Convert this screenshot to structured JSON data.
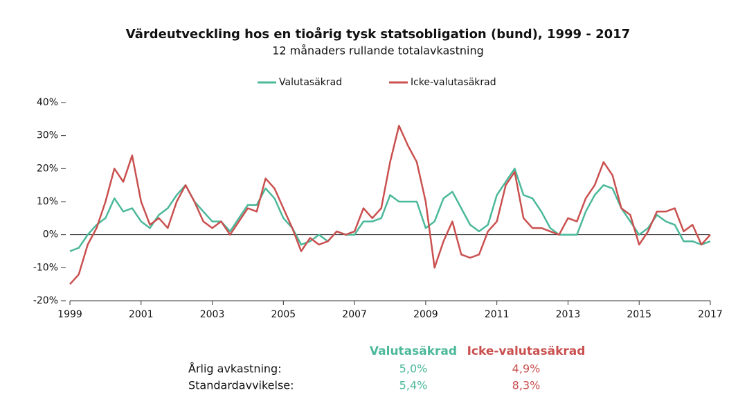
{
  "chart_data": {
    "type": "line",
    "title": "Värdeutveckling hos en tioårig tysk statsobligation (bund), 1999 - 2017",
    "subtitle": "12 månaders rullande totalavkastning",
    "legend": "top",
    "x": [
      1999,
      1999.25,
      1999.5,
      1999.75,
      2000,
      2000.25,
      2000.5,
      2000.75,
      2001,
      2001.25,
      2001.5,
      2001.75,
      2002,
      2002.25,
      2002.5,
      2002.75,
      2003,
      2003.25,
      2003.5,
      2003.75,
      2004,
      2004.25,
      2004.5,
      2004.75,
      2005,
      2005.25,
      2005.5,
      2005.75,
      2006,
      2006.25,
      2006.5,
      2006.75,
      2007,
      2007.25,
      2007.5,
      2007.75,
      2008,
      2008.25,
      2008.5,
      2008.75,
      2009,
      2009.25,
      2009.5,
      2009.75,
      2010,
      2010.25,
      2010.5,
      2010.75,
      2011,
      2011.25,
      2011.5,
      2011.75,
      2012,
      2012.25,
      2012.5,
      2012.75,
      2013,
      2013.25,
      2013.5,
      2013.75,
      2014,
      2014.25,
      2014.5,
      2014.75,
      2015,
      2015.25,
      2015.5,
      2015.75,
      2016,
      2016.25,
      2016.5,
      2016.75,
      2017
    ],
    "series": [
      {
        "name": "Valutasäkrad",
        "color": "#4bb89a",
        "values": [
          -5,
          -4,
          0,
          3,
          5,
          11,
          7,
          8,
          4,
          2,
          6,
          8,
          12,
          15,
          10,
          7,
          4,
          4,
          1,
          5,
          9,
          9,
          14,
          11,
          5,
          2,
          -3,
          -2,
          0,
          -2,
          1,
          0,
          0,
          4,
          4,
          5,
          12,
          10,
          10,
          10,
          2,
          4,
          11,
          13,
          8,
          3,
          1,
          3,
          12,
          16,
          20,
          12,
          11,
          7,
          2,
          0,
          0,
          0,
          7,
          12,
          15,
          14,
          8,
          4,
          0,
          2,
          6,
          4,
          3,
          -2,
          -2,
          -3,
          -2
        ]
      },
      {
        "name": "Icke-valutasäkrad",
        "color": "#c9504f",
        "values": [
          -15,
          -12,
          -3,
          2,
          10,
          20,
          16,
          24,
          10,
          3,
          5,
          2,
          10,
          15,
          10,
          4,
          2,
          4,
          0,
          4,
          8,
          7,
          17,
          14,
          8,
          2,
          -5,
          -1,
          -3,
          -2,
          1,
          0,
          1,
          8,
          5,
          8,
          22,
          33,
          27,
          22,
          10,
          -10,
          -2,
          4,
          -6,
          -7,
          -6,
          1,
          4,
          15,
          19,
          5,
          2,
          2,
          1,
          0,
          5,
          4,
          11,
          15,
          22,
          18,
          8,
          6,
          -3,
          1,
          7,
          7,
          8,
          1,
          3,
          -3,
          0
        ]
      }
    ],
    "xlim": [
      1999,
      2017
    ],
    "xticks": [
      1999,
      2001,
      2003,
      2005,
      2007,
      2009,
      2011,
      2013,
      2015,
      2017
    ],
    "ylim": [
      -20,
      40
    ],
    "yticks": [
      {
        "value": -20,
        "label": "-20%"
      },
      {
        "value": -10,
        "label": "-10%"
      },
      {
        "value": 0,
        "label": "0%"
      },
      {
        "value": 10,
        "label": "10%"
      },
      {
        "value": 20,
        "label": "20%"
      },
      {
        "value": 30,
        "label": "30%"
      },
      {
        "value": 40,
        "label": "40%"
      }
    ],
    "grid": false,
    "summary": {
      "rows": [
        {
          "label": "Årlig avkastning:",
          "cells": [
            "5,0%",
            "4,9%"
          ]
        },
        {
          "label": "Standardavvikelse:",
          "cells": [
            "5,4%",
            "8,3%"
          ]
        }
      ]
    }
  }
}
